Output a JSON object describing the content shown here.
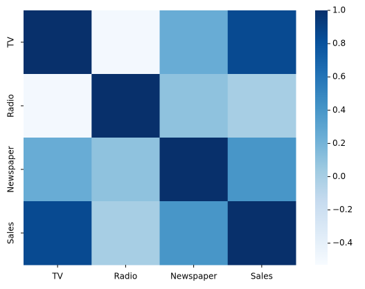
{
  "chart_data": {
    "type": "heatmap",
    "x": [
      "TV",
      "Radio",
      "Newspaper",
      "Sales"
    ],
    "y": [
      "TV",
      "Radio",
      "Newspaper",
      "Sales"
    ],
    "values": [
      [
        1.0,
        -0.5,
        0.25,
        0.85
      ],
      [
        -0.5,
        1.0,
        0.1,
        0.0
      ],
      [
        0.25,
        0.1,
        1.0,
        0.4
      ],
      [
        0.85,
        0.0,
        0.4,
        1.0
      ]
    ],
    "colormap": "Blues",
    "colorbar_lim": [
      -0.53,
      1.0
    ],
    "colorbar_ticks": [
      {
        "value": -0.4,
        "label": "−0.4"
      },
      {
        "value": -0.2,
        "label": "−0.2"
      },
      {
        "value": 0.0,
        "label": "0.0"
      },
      {
        "value": 0.2,
        "label": "0.2"
      },
      {
        "value": 0.4,
        "label": "0.4"
      },
      {
        "value": 0.6,
        "label": "0.6"
      },
      {
        "value": 0.8,
        "label": "0.8"
      },
      {
        "value": 1.0,
        "label": "1.0"
      }
    ]
  }
}
